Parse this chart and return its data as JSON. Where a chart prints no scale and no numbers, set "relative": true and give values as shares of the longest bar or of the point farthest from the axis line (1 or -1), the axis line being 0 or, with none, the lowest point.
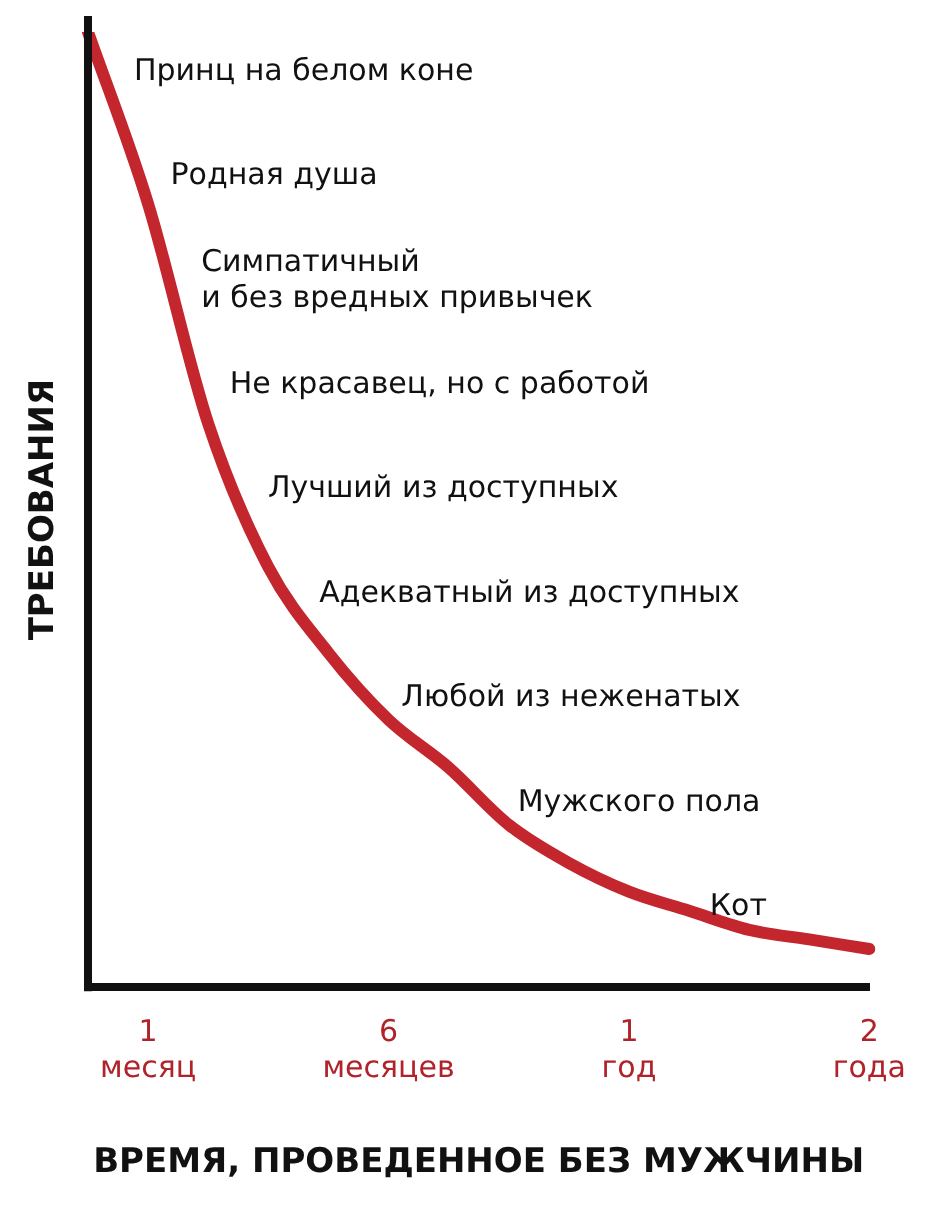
{
  "chart_data": {
    "type": "line",
    "relative": true,
    "ylabel": "ТРЕБОВАНИЯ",
    "xlabel": "ВРЕМЯ, ПРОВЕДЕННОЕ БЕЗ МУЖЧИНЫ",
    "categories": [
      null,
      "1\nмесяц",
      null,
      null,
      null,
      "6\nмесяцев",
      null,
      null,
      null,
      "1\nгод",
      null,
      null,
      null,
      "2\nгода"
    ],
    "series": [
      {
        "color": "#c4262e",
        "values": [
          1,
          0.82,
          0.59,
          0.44,
          0.35,
          0.28,
          0.23,
          0.17,
          0.13,
          0.1,
          0.08,
          0.06,
          0.05,
          0.04
        ]
      }
    ],
    "line_style": "solid",
    "legend": false,
    "grid": false,
    "annotations": [
      "Принц на белом коне",
      "Родная душа",
      "Симпатичный\nи без вредных привычек",
      "Не красавец, но с работой",
      "Лучший из доступных",
      "Адекватный из доступных",
      "Любой из неженатых",
      "Мужского пола",
      "Кот"
    ]
  }
}
